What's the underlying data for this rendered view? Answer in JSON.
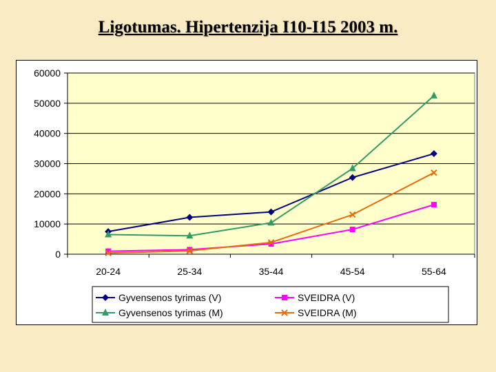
{
  "slide": {
    "title": "Ligotumas. Hipertenzija I10-I15 2003 m."
  },
  "chart_data": {
    "type": "line",
    "title": "Ligotumas. Hipertenzija I10-I15 2003 m.",
    "xlabel": "",
    "ylabel": "",
    "categories": [
      "20-24",
      "25-34",
      "35-44",
      "45-54",
      "55-64"
    ],
    "yticks": [
      "0",
      "10000",
      "20000",
      "30000",
      "40000",
      "50000",
      "60000"
    ],
    "ylim": [
      0,
      60000
    ],
    "grid": "horizontal",
    "legend_position": "bottom",
    "plot_background": "#ffffcc",
    "series": [
      {
        "name": "Gyvensenos tyrimas (V)",
        "color": "#000080",
        "marker": "diamond",
        "values": [
          7500,
          12200,
          14000,
          25400,
          33300
        ]
      },
      {
        "name": "Gyvensenos tyrimas (M)",
        "color": "#339966",
        "marker": "triangle",
        "values": [
          6500,
          6100,
          10400,
          28400,
          52500
        ]
      },
      {
        "name": "SVEIDRA (V)",
        "color": "#ff00ff",
        "marker": "square",
        "values": [
          1000,
          1500,
          3400,
          8200,
          16400
        ]
      },
      {
        "name": "SVEIDRA (M)",
        "color": "#e46c0a",
        "marker": "x",
        "values": [
          400,
          1100,
          3900,
          13100,
          27000
        ]
      }
    ]
  }
}
